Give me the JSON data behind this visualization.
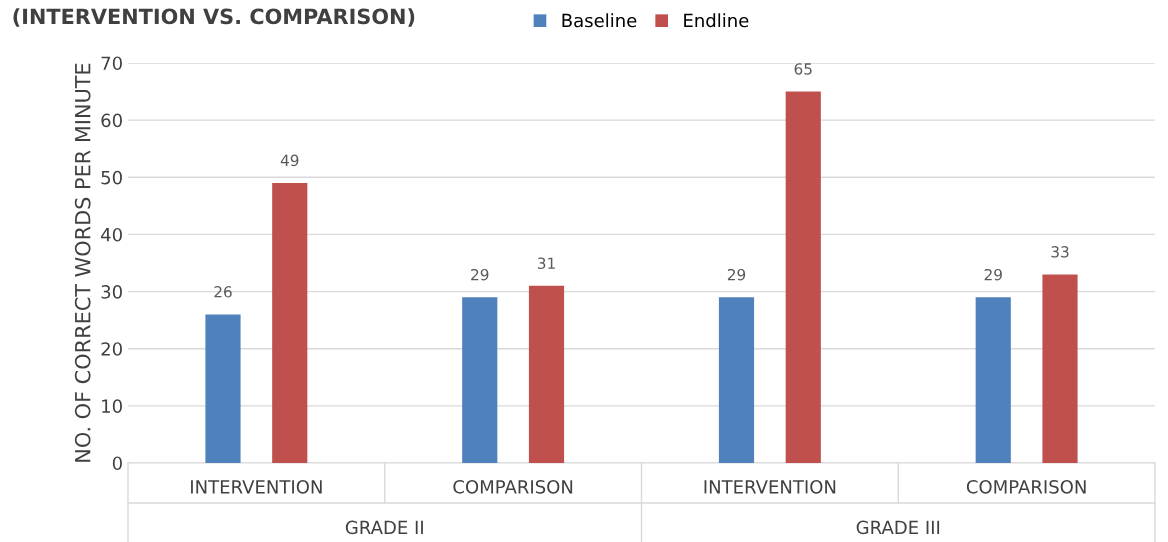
{
  "chart_data": {
    "type": "bar",
    "title": "(INTERVENTION VS. COMPARISON)",
    "categories": [
      "INTERVENTION",
      "COMPARISON",
      "INTERVENTION",
      "COMPARISON"
    ],
    "series": [
      {
        "name": "Baseline",
        "color": "#4f81bd",
        "values": [
          26,
          29,
          29,
          29
        ]
      },
      {
        "name": "Endline",
        "color": "#c0504d",
        "values": [
          49,
          31,
          65,
          33
        ]
      }
    ],
    "ylabel": "NO. OF CORRECT WORDS PER MINUTE",
    "ylim": [
      0,
      70
    ],
    "yticks": [
      0,
      10,
      20,
      30,
      40,
      50,
      60,
      70
    ],
    "grid": "y",
    "legend": "top",
    "data_labels": true,
    "annotations": [
      "GRADE II",
      "GRADE III"
    ]
  }
}
